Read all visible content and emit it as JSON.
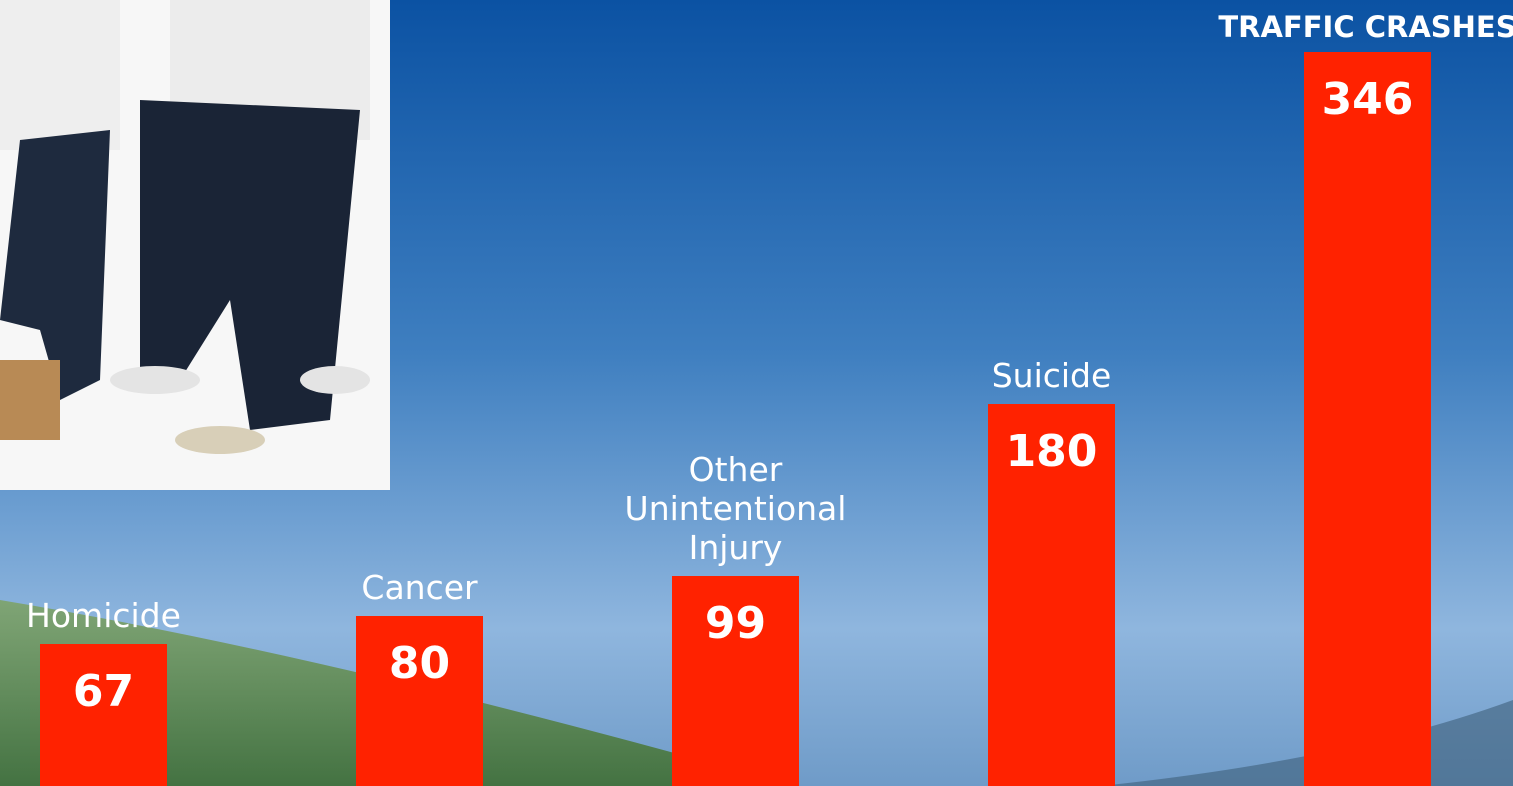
{
  "chart_data": {
    "type": "bar",
    "categories": [
      "Homicide",
      "Cancer",
      "Other\nUnintentional\nInjury",
      "Suicide",
      "TRAFFIC CRASHES"
    ],
    "values": [
      67,
      80,
      99,
      180,
      346
    ],
    "color": "#ff2200"
  }
}
